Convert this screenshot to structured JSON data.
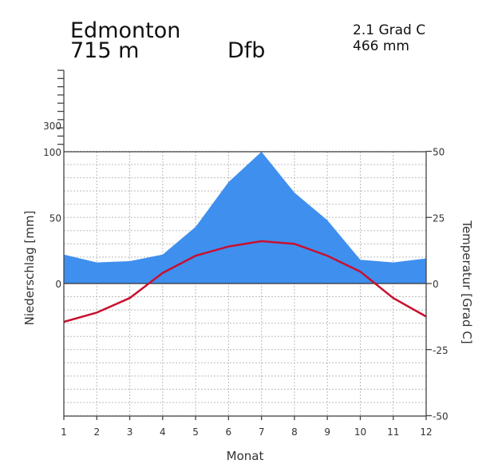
{
  "header": {
    "station": "Edmonton",
    "elevation": "715 m",
    "climate_class": "Dfb",
    "mean_temperature": "2.1 Grad C",
    "annual_precipitation": "466 mm"
  },
  "colors": {
    "precipitation_fill": "#3f8fef",
    "temperature_line": "#c8102e",
    "grid": "#bbbbbb",
    "axis": "#444444"
  },
  "chart_data": {
    "type": "area",
    "xlabel": "Monat",
    "ylabel_left": "Niederschlag [mm]",
    "ylabel_right": "Temperatur [Grad C]",
    "x": [
      1,
      2,
      3,
      4,
      5,
      6,
      7,
      8,
      9,
      10,
      11,
      12
    ],
    "x_tick_labels": [
      "1",
      "2",
      "3",
      "4",
      "5",
      "6",
      "7",
      "8",
      "9",
      "10",
      "11",
      "12"
    ],
    "left_tick_labels": [
      "0",
      "50",
      "100",
      "300"
    ],
    "right_tick_labels": [
      "-50",
      "-25",
      "0",
      "25",
      "50"
    ],
    "ylim_temperature": [
      -50,
      50
    ],
    "ylim_precipitation": [
      0,
      100
    ],
    "grid": true,
    "series": [
      {
        "name": "Niederschlag",
        "unit": "mm",
        "values": [
          22,
          16,
          17,
          22,
          43,
          77,
          101,
          69,
          48,
          18,
          16,
          19
        ]
      },
      {
        "name": "Temperatur",
        "unit": "Grad C",
        "values": [
          -14.5,
          -11,
          -5.5,
          4,
          10.5,
          14,
          16,
          15,
          10.5,
          4.5,
          -5.5,
          -12.5
        ]
      }
    ]
  }
}
